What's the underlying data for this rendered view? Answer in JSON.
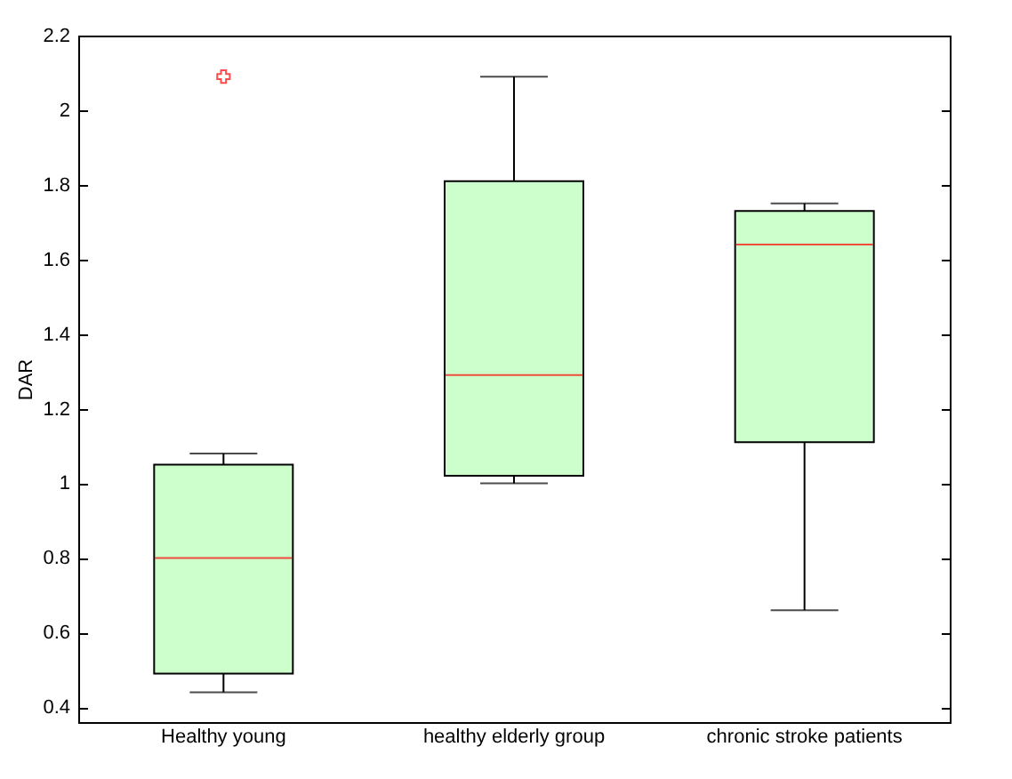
{
  "chart_data": {
    "type": "box",
    "ylabel": "DAR",
    "categories": [
      "Healthy young",
      "healthy elderly group",
      "chronic stroke patients"
    ],
    "boxes": [
      {
        "low": 0.44,
        "q1": 0.49,
        "median": 0.8,
        "q3": 1.05,
        "high": 1.08,
        "outliers": [
          2.09
        ]
      },
      {
        "low": 1.0,
        "q1": 1.02,
        "median": 1.29,
        "q3": 1.81,
        "high": 2.09
      },
      {
        "low": 0.66,
        "q1": 1.11,
        "median": 1.64,
        "q3": 1.73,
        "high": 1.75
      }
    ],
    "color": "#ccffcc",
    "ylim": [
      0.36,
      2.2
    ],
    "yticks": [
      0.4,
      0.6,
      0.8,
      1,
      1.2,
      1.4,
      1.6,
      1.8,
      2,
      2.2
    ],
    "grid": false
  }
}
